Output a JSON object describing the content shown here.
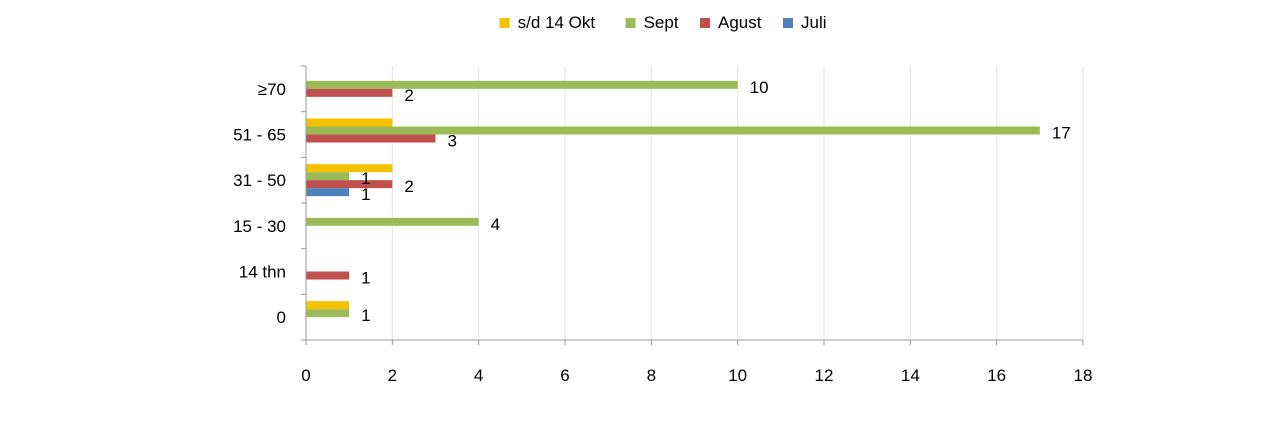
{
  "chart_data": {
    "type": "bar",
    "orientation": "horizontal",
    "title": "",
    "xlabel": "",
    "ylabel": "",
    "categories": [
      "0",
      "14 thn",
      "15 - 30",
      "31 - 50",
      "51 - 65",
      "≥70"
    ],
    "series": [
      {
        "name": "s/d 14 Okt",
        "color": "#F5C200",
        "values": [
          1,
          0,
          0,
          2,
          2,
          0
        ]
      },
      {
        "name": "Sept",
        "color": "#9BBB59",
        "values": [
          1,
          0,
          4,
          1,
          17,
          10
        ]
      },
      {
        "name": "Agust",
        "color": "#C0504D",
        "values": [
          0,
          1,
          0,
          2,
          3,
          2
        ]
      },
      {
        "name": "Juli",
        "color": "#4F81BD",
        "values": [
          0,
          0,
          0,
          1,
          0,
          0
        ]
      }
    ],
    "data_labels": [
      {
        "category": "≥70",
        "text": "10"
      },
      {
        "category": "≥70",
        "text": "2"
      },
      {
        "category": "51 - 65",
        "text": "17"
      },
      {
        "category": "51 - 65",
        "text": "3"
      },
      {
        "category": "31 - 50",
        "text": "1"
      },
      {
        "category": "31 - 50",
        "text": "2"
      },
      {
        "category": "31 - 50",
        "text": "1"
      },
      {
        "category": "15 - 30",
        "text": "4"
      },
      {
        "category": "14 thn",
        "text": "1"
      },
      {
        "category": "0",
        "text": "1"
      }
    ],
    "xlim": [
      0,
      18
    ],
    "xticks": [
      "0",
      "2",
      "4",
      "6",
      "8",
      "10",
      "12",
      "14",
      "16",
      "18"
    ],
    "grid": true,
    "legend_position": "top"
  }
}
